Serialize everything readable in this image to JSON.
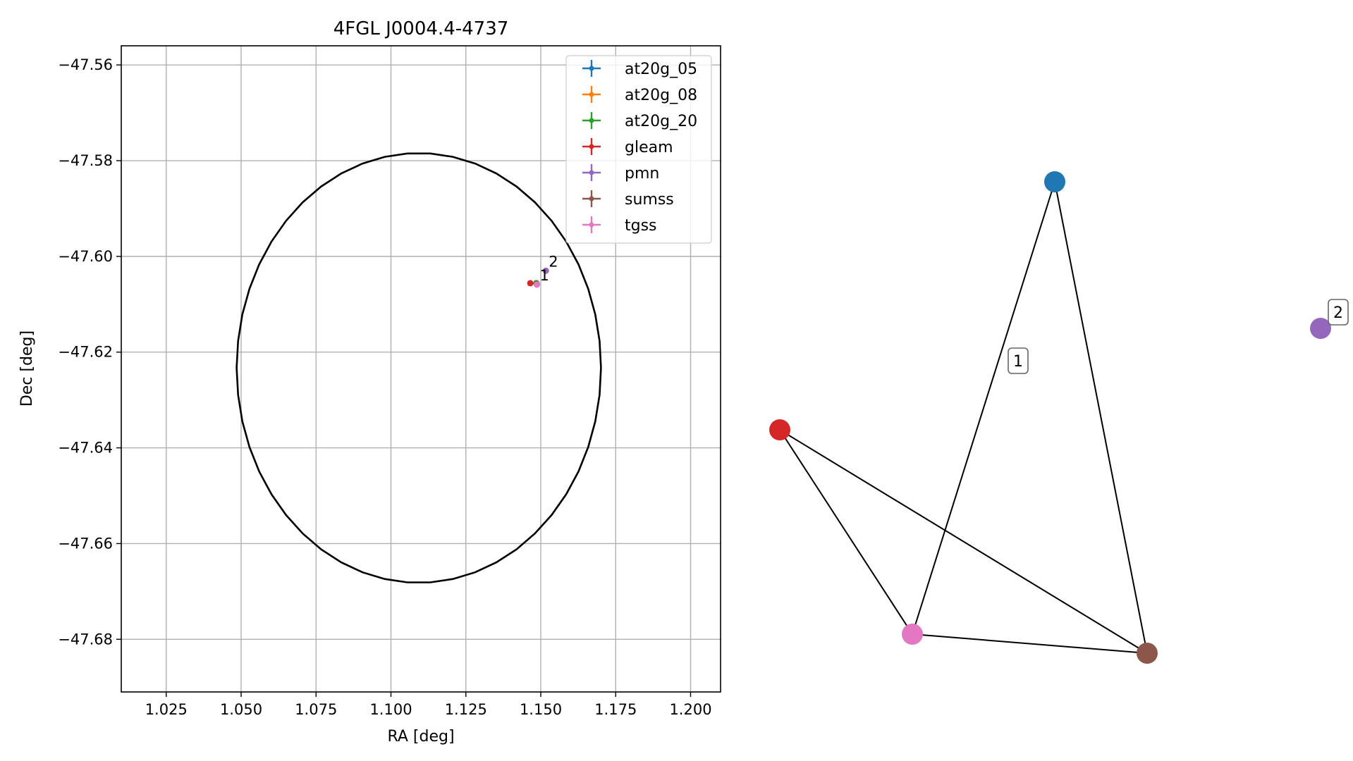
{
  "chart_data": [
    {
      "type": "scatter",
      "title": "4FGL J0004.4-4737",
      "xlabel": "RA [deg]",
      "ylabel": "Dec [deg]",
      "xlim": [
        1.01,
        1.21
      ],
      "ylim": [
        -47.691,
        -47.556
      ],
      "x_ticks": [
        1.025,
        1.05,
        1.075,
        1.1,
        1.125,
        1.15,
        1.175,
        1.2
      ],
      "x_tick_labels": [
        "1.025",
        "1.050",
        "1.075",
        "1.100",
        "1.125",
        "1.150",
        "1.175",
        "1.200"
      ],
      "y_ticks": [
        -47.56,
        -47.58,
        -47.6,
        -47.62,
        -47.64,
        -47.66,
        -47.68
      ],
      "y_tick_labels": [
        "−47.56",
        "−47.58",
        "−47.60",
        "−47.62",
        "−47.64",
        "−47.66",
        "−47.68"
      ],
      "grid": true,
      "legend_position": "top-right",
      "ellipse": {
        "center": [
          1.1093,
          -47.6233
        ],
        "semi_axis_ra": 0.0608,
        "semi_axis_dec": 0.0449
      },
      "series": [
        {
          "name": "at20g_05",
          "color": "#1f77b4",
          "points": [
            [
              1.1485,
              -47.6056
            ]
          ]
        },
        {
          "name": "at20g_08",
          "color": "#ff7f0e",
          "points": [
            [
              1.1485,
              -47.6056
            ]
          ]
        },
        {
          "name": "at20g_20",
          "color": "#2ca02c",
          "points": [
            [
              1.1485,
              -47.6056
            ]
          ]
        },
        {
          "name": "gleam",
          "color": "#d62728",
          "points": [
            [
              1.1465,
              -47.6056
            ]
          ]
        },
        {
          "name": "pmn",
          "color": "#9467bd",
          "points": [
            [
              1.1517,
              -47.603
            ]
          ]
        },
        {
          "name": "sumss",
          "color": "#8c564b",
          "points": [
            [
              1.1487,
              -47.6058
            ]
          ]
        },
        {
          "name": "tgss",
          "color": "#e377c2",
          "points": [
            [
              1.1487,
              -47.6059
            ]
          ]
        }
      ],
      "annotations": [
        {
          "text": "1",
          "x": 1.1487,
          "y": -47.6059
        },
        {
          "text": "2",
          "x": 1.1517,
          "y": -47.603
        }
      ]
    },
    {
      "type": "network",
      "nodes": [
        {
          "id": "at20g",
          "color": "#1f77b4"
        },
        {
          "id": "gleam",
          "color": "#d62728"
        },
        {
          "id": "tgss",
          "color": "#e377c2"
        },
        {
          "id": "sumss",
          "color": "#8c564b"
        },
        {
          "id": "pmn",
          "color": "#9467bd"
        }
      ],
      "edges": [
        [
          "at20g",
          "tgss"
        ],
        [
          "at20g",
          "sumss"
        ],
        [
          "gleam",
          "tgss"
        ],
        [
          "gleam",
          "sumss"
        ],
        [
          "tgss",
          "sumss"
        ]
      ],
      "cluster_labels": [
        "1",
        "2"
      ]
    }
  ]
}
